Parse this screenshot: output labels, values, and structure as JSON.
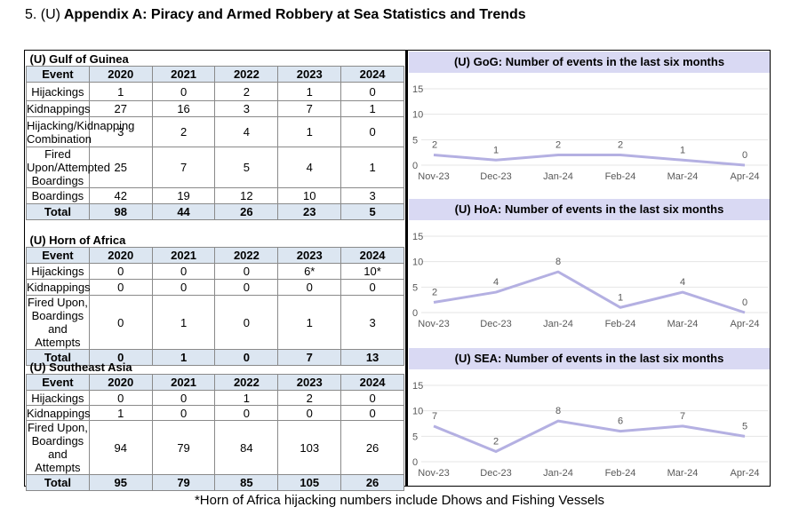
{
  "page": {
    "section_number": "5. (U)",
    "title": "Appendix A: Piracy and Armed Robbery at Sea Statistics and Trends",
    "footnote": "*Horn of Africa hijacking numbers include Dhows and Fishing Vessels"
  },
  "tables": {
    "gog": {
      "title": "(U) Gulf of Guinea",
      "header": [
        "Event",
        "2020",
        "2021",
        "2022",
        "2023",
        "2024"
      ],
      "rows": [
        [
          "Hijackings",
          "1",
          "0",
          "2",
          "1",
          "0"
        ],
        [
          "Kidnappings",
          "27",
          "16",
          "3",
          "7",
          "1"
        ],
        [
          "Hijacking/Kidnapping Combination",
          "3",
          "2",
          "4",
          "1",
          "0"
        ],
        [
          "Fired Upon/Attempted Boardings",
          "25",
          "7",
          "5",
          "4",
          "1"
        ],
        [
          "Boardings",
          "42",
          "19",
          "12",
          "10",
          "3"
        ]
      ],
      "total": [
        "Total",
        "98",
        "44",
        "26",
        "23",
        "5"
      ]
    },
    "hoa": {
      "title": "(U) Horn of Africa",
      "header": [
        "Event",
        "2020",
        "2021",
        "2022",
        "2023",
        "2024"
      ],
      "rows": [
        [
          "Hijackings",
          "0",
          "0",
          "0",
          "6*",
          "10*"
        ],
        [
          "Kidnappings",
          "0",
          "0",
          "0",
          "0",
          "0"
        ],
        [
          "Fired Upon, Boardings and Attempts",
          "0",
          "1",
          "0",
          "1",
          "3"
        ]
      ],
      "total": [
        "Total",
        "0",
        "1",
        "0",
        "7",
        "13"
      ]
    },
    "sea": {
      "title": "(U) Southeast Asia",
      "header": [
        "Event",
        "2020",
        "2021",
        "2022",
        "2023",
        "2024"
      ],
      "rows": [
        [
          "Hijackings",
          "0",
          "0",
          "1",
          "2",
          "0"
        ],
        [
          "Kidnappings",
          "1",
          "0",
          "0",
          "0",
          "0"
        ],
        [
          "Fired Upon, Boardings and Attempts",
          "94",
          "79",
          "84",
          "103",
          "26"
        ]
      ],
      "total": [
        "Total",
        "95",
        "79",
        "85",
        "105",
        "26"
      ]
    }
  },
  "chart_data": [
    {
      "type": "line",
      "title": "(U) GoG: Number of events in the last six months",
      "categories": [
        "Nov-23",
        "Dec-23",
        "Jan-24",
        "Feb-24",
        "Mar-24",
        "Apr-24"
      ],
      "values": [
        2,
        1,
        2,
        2,
        1,
        0
      ],
      "ylim": [
        0,
        15
      ],
      "yticks": [
        0,
        5,
        10,
        15
      ],
      "grid": true,
      "line_color": "#b4b0e2"
    },
    {
      "type": "line",
      "title": "(U) HoA: Number of events in the last six months",
      "categories": [
        "Nov-23",
        "Dec-23",
        "Jan-24",
        "Feb-24",
        "Mar-24",
        "Apr-24"
      ],
      "values": [
        2,
        4,
        8,
        1,
        4,
        0
      ],
      "ylim": [
        0,
        15
      ],
      "yticks": [
        0,
        5,
        10,
        15
      ],
      "grid": true,
      "line_color": "#b4b0e2"
    },
    {
      "type": "line",
      "title": "(U) SEA: Number of events in the last six months",
      "categories": [
        "Nov-23",
        "Dec-23",
        "Jan-24",
        "Feb-24",
        "Mar-24",
        "Apr-24"
      ],
      "values": [
        7,
        2,
        8,
        6,
        7,
        5
      ],
      "ylim": [
        0,
        15
      ],
      "yticks": [
        0,
        5,
        10,
        15
      ],
      "grid": true,
      "line_color": "#b4b0e2"
    }
  ]
}
